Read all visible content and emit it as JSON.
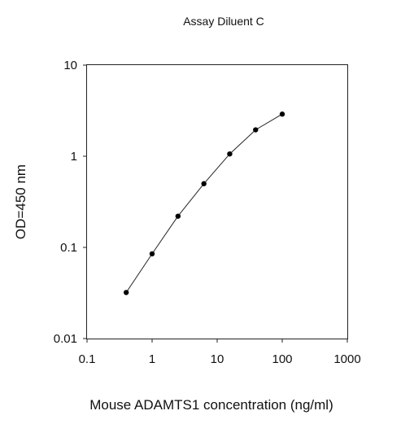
{
  "chart_data": {
    "type": "scatter",
    "title": "Assay Diluent C",
    "xlabel": "Mouse ADAMTS1 concentration (ng/ml)",
    "ylabel": "OD=450 nm",
    "x_scale": "log",
    "y_scale": "log",
    "xlim": [
      0.1,
      1000
    ],
    "ylim": [
      0.01,
      10
    ],
    "x_ticks": [
      0.1,
      1,
      10,
      100,
      1000
    ],
    "x_tick_labels": [
      "0.1",
      "1",
      "10",
      "100",
      "1000"
    ],
    "y_ticks": [
      0.01,
      0.1,
      1,
      10
    ],
    "y_tick_labels": [
      "0.01",
      "0.1",
      "1",
      "10"
    ],
    "grid": false,
    "legend": "none",
    "series": [
      {
        "x": [
          0.4,
          1,
          2.5,
          6.25,
          15.6,
          39,
          100
        ],
        "y": [
          0.032,
          0.085,
          0.22,
          0.5,
          1.06,
          1.95,
          2.9
        ],
        "marker": "circle",
        "line": true,
        "color": "#000000"
      }
    ]
  }
}
